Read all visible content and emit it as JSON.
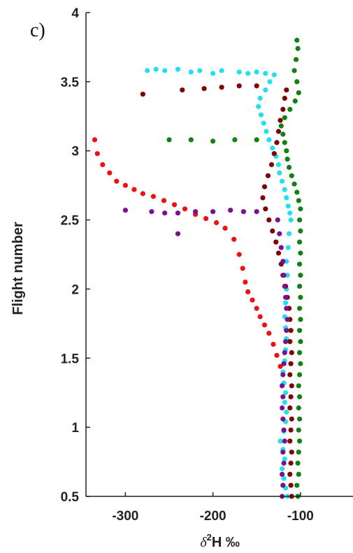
{
  "panel_label": "c)",
  "chart_data": {
    "type": "scatter",
    "title": "",
    "xlabel_prefix": "δ",
    "xlabel_sup": "2",
    "xlabel_suffix": "H ‰",
    "ylabel": "Flight number",
    "xlim": [
      -345,
      -40
    ],
    "ylim": [
      0.5,
      4
    ],
    "xticks": [
      -300,
      -200,
      -100
    ],
    "xtick_labels": [
      "-300",
      "-200",
      "-100"
    ],
    "yticks": [
      0.5,
      1,
      1.5,
      2,
      2.5,
      3,
      3.5,
      4
    ],
    "ytick_labels": [
      "0.5",
      "1",
      "1.5",
      "2",
      "2.5",
      "3",
      "3.5",
      "4"
    ],
    "grid": false,
    "series": [
      {
        "color": "#22e0ee",
        "points": [
          [
            -115,
            0.5
          ],
          [
            -117,
            0.56
          ],
          [
            -119,
            0.63
          ],
          [
            -121,
            0.7
          ],
          [
            -118,
            0.77
          ],
          [
            -120,
            0.84
          ],
          [
            -123,
            0.9
          ],
          [
            -119,
            0.97
          ],
          [
            -117,
            1.04
          ],
          [
            -116,
            1.11
          ],
          [
            -118,
            1.18
          ],
          [
            -117,
            1.25
          ],
          [
            -119,
            1.32
          ],
          [
            -120,
            1.4
          ],
          [
            -118,
            1.48
          ],
          [
            -117,
            1.56
          ],
          [
            -116,
            1.64
          ],
          [
            -117,
            1.72
          ],
          [
            -118,
            1.8
          ],
          [
            -117,
            1.9
          ],
          [
            -116,
            2.0
          ],
          [
            -115,
            2.1
          ],
          [
            -116,
            2.2
          ],
          [
            -114,
            2.3
          ],
          [
            -113,
            2.4
          ],
          [
            -111,
            2.5
          ],
          [
            -112,
            2.55
          ],
          [
            -114,
            2.6
          ],
          [
            -116,
            2.66
          ],
          [
            -118,
            2.72
          ],
          [
            -121,
            2.78
          ],
          [
            -124,
            2.84
          ],
          [
            -125,
            2.9
          ],
          [
            -128,
            2.96
          ],
          [
            -132,
            3.02
          ],
          [
            -136,
            3.08
          ],
          [
            -139,
            3.14
          ],
          [
            -142,
            3.2
          ],
          [
            -145,
            3.26
          ],
          [
            -148,
            3.32
          ],
          [
            -146,
            3.38
          ],
          [
            -140,
            3.44
          ],
          [
            -135,
            3.5
          ],
          [
            -130,
            3.55
          ],
          [
            -140,
            3.56
          ],
          [
            -150,
            3.57
          ],
          [
            -160,
            3.56
          ],
          [
            -170,
            3.57
          ],
          [
            -190,
            3.58
          ],
          [
            -200,
            3.56
          ],
          [
            -215,
            3.58
          ],
          [
            -225,
            3.57
          ],
          [
            -240,
            3.59
          ],
          [
            -255,
            3.58
          ],
          [
            -265,
            3.59
          ],
          [
            -275,
            3.58
          ]
        ]
      },
      {
        "color": "#800000",
        "points": [
          [
            -110,
            0.5
          ],
          [
            -111,
            0.58
          ],
          [
            -112,
            0.66
          ],
          [
            -111,
            0.74
          ],
          [
            -110,
            0.82
          ],
          [
            -112,
            0.9
          ],
          [
            -111,
            0.98
          ],
          [
            -110,
            1.06
          ],
          [
            -112,
            1.14
          ],
          [
            -111,
            1.22
          ],
          [
            -110,
            1.3
          ],
          [
            -112,
            1.38
          ],
          [
            -111,
            1.46
          ],
          [
            -110,
            1.54
          ],
          [
            -112,
            1.62
          ],
          [
            -111,
            1.7
          ],
          [
            -112,
            1.78
          ],
          [
            -113,
            1.86
          ],
          [
            -115,
            1.94
          ],
          [
            -117,
            2.02
          ],
          [
            -120,
            2.1
          ],
          [
            -122,
            2.18
          ],
          [
            -125,
            2.26
          ],
          [
            -128,
            2.34
          ],
          [
            -132,
            2.42
          ],
          [
            -136,
            2.5
          ],
          [
            -140,
            2.58
          ],
          [
            -143,
            2.66
          ],
          [
            -141,
            2.74
          ],
          [
            -137,
            2.82
          ],
          [
            -133,
            2.9
          ],
          [
            -130,
            2.98
          ],
          [
            -127,
            3.06
          ],
          [
            -125,
            3.14
          ],
          [
            -123,
            3.22
          ],
          [
            -120,
            3.3
          ],
          [
            -118,
            3.38
          ],
          [
            -116,
            3.44
          ],
          [
            -150,
            3.47
          ],
          [
            -170,
            3.47
          ],
          [
            -190,
            3.46
          ],
          [
            -210,
            3.45
          ],
          [
            -235,
            3.44
          ],
          [
            -280,
            3.41
          ]
        ]
      },
      {
        "color": "#128012",
        "points": [
          [
            -103,
            0.5
          ],
          [
            -104,
            0.58
          ],
          [
            -102,
            0.66
          ],
          [
            -103,
            0.74
          ],
          [
            -102,
            0.82
          ],
          [
            -101,
            0.9
          ],
          [
            -102,
            0.98
          ],
          [
            -101,
            1.06
          ],
          [
            -102,
            1.14
          ],
          [
            -101,
            1.22
          ],
          [
            -102,
            1.3
          ],
          [
            -101,
            1.38
          ],
          [
            -100,
            1.46
          ],
          [
            -101,
            1.54
          ],
          [
            -100,
            1.62
          ],
          [
            -101,
            1.7
          ],
          [
            -100,
            1.78
          ],
          [
            -101,
            1.86
          ],
          [
            -100,
            1.94
          ],
          [
            -101,
            2.02
          ],
          [
            -100,
            2.1
          ],
          [
            -101,
            2.18
          ],
          [
            -100,
            2.26
          ],
          [
            -101,
            2.34
          ],
          [
            -100,
            2.42
          ],
          [
            -101,
            2.5
          ],
          [
            -100,
            2.58
          ],
          [
            -102,
            2.64
          ],
          [
            -104,
            2.7
          ],
          [
            -107,
            2.76
          ],
          [
            -110,
            2.82
          ],
          [
            -113,
            2.88
          ],
          [
            -115,
            2.94
          ],
          [
            -116,
            3.0
          ],
          [
            -118,
            3.06
          ],
          [
            -120,
            3.12
          ],
          [
            -122,
            3.18
          ],
          [
            -118,
            3.24
          ],
          [
            -112,
            3.3
          ],
          [
            -106,
            3.36
          ],
          [
            -102,
            3.42
          ],
          [
            -104,
            3.5
          ],
          [
            -107,
            3.58
          ],
          [
            -105,
            3.66
          ],
          [
            -103,
            3.74
          ],
          [
            -104,
            3.8
          ],
          [
            -150,
            3.08
          ],
          [
            -175,
            3.08
          ],
          [
            -200,
            3.07
          ],
          [
            -225,
            3.08
          ],
          [
            -250,
            3.08
          ]
        ]
      },
      {
        "color": "#f01010",
        "points": [
          [
            -335,
            3.08
          ],
          [
            -332,
            2.98
          ],
          [
            -326,
            2.9
          ],
          [
            -318,
            2.84
          ],
          [
            -310,
            2.78
          ],
          [
            -300,
            2.75
          ],
          [
            -290,
            2.72
          ],
          [
            -280,
            2.69
          ],
          [
            -268,
            2.67
          ],
          [
            -256,
            2.64
          ],
          [
            -244,
            2.61
          ],
          [
            -232,
            2.58
          ],
          [
            -220,
            2.54
          ],
          [
            -208,
            2.51
          ],
          [
            -196,
            2.48
          ],
          [
            -186,
            2.44
          ],
          [
            -176,
            2.36
          ],
          [
            -170,
            2.25
          ],
          [
            -166,
            2.15
          ],
          [
            -163,
            2.05
          ],
          [
            -160,
            1.98
          ],
          [
            -155,
            1.92
          ],
          [
            -150,
            1.86
          ],
          [
            -146,
            1.8
          ],
          [
            -141,
            1.74
          ],
          [
            -136,
            1.68
          ],
          [
            -131,
            1.6
          ],
          [
            -127,
            1.52
          ],
          [
            -123,
            1.44
          ]
        ]
      },
      {
        "color": "#7a1090",
        "points": [
          [
            -121,
            0.5
          ],
          [
            -120,
            0.58
          ],
          [
            -121,
            0.66
          ],
          [
            -119,
            0.74
          ],
          [
            -120,
            0.82
          ],
          [
            -118,
            0.9
          ],
          [
            -119,
            0.98
          ],
          [
            -120,
            1.06
          ],
          [
            -121,
            1.14
          ],
          [
            -120,
            1.22
          ],
          [
            -121,
            1.3
          ],
          [
            -120,
            1.38
          ],
          [
            -119,
            1.46
          ],
          [
            -118,
            1.54
          ],
          [
            -117,
            1.62
          ],
          [
            -116,
            1.7
          ],
          [
            -115,
            1.78
          ],
          [
            -116,
            1.86
          ],
          [
            -117,
            1.94
          ],
          [
            -118,
            2.02
          ],
          [
            -119,
            2.1
          ],
          [
            -120,
            2.2
          ],
          [
            -122,
            2.3
          ],
          [
            -124,
            2.4
          ],
          [
            -126,
            2.5
          ],
          [
            -150,
            2.56
          ],
          [
            -165,
            2.56
          ],
          [
            -180,
            2.57
          ],
          [
            -200,
            2.56
          ],
          [
            -220,
            2.56
          ],
          [
            -240,
            2.55
          ],
          [
            -255,
            2.55
          ],
          [
            -270,
            2.56
          ],
          [
            -300,
            2.57
          ],
          [
            -240,
            2.4
          ]
        ]
      }
    ]
  }
}
